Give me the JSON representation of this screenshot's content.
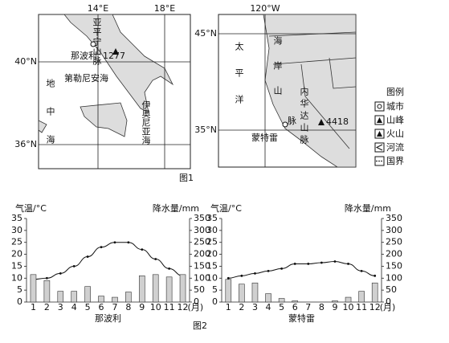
{
  "figure1": {
    "caption": "图1",
    "map_a": {
      "lon_labels": [
        "14°E",
        "18°E"
      ],
      "lat_labels": [
        "40°N",
        "36°N"
      ],
      "labels": [
        "亚平宁山脉",
        "那波利",
        "1277",
        "第勒尼安海",
        "地中海",
        "伊奥尼亚海"
      ]
    },
    "map_b": {
      "lon_labels": [
        "120°W"
      ],
      "lat_labels": [
        "45°N",
        "35°N"
      ],
      "labels": [
        "太平洋",
        "海岸山",
        "脉",
        "内华达山脉",
        "4418",
        "蒙特雷"
      ]
    },
    "legend": {
      "title": "图例",
      "items": [
        "城市",
        "山峰",
        "火山",
        "河流",
        "国界"
      ]
    }
  },
  "chart_data": [
    {
      "type": "climate",
      "title": "那波利",
      "ylabel": "气温/°C",
      "y2label": "降水量/mm",
      "x_unit": "(月)",
      "categories": [
        "1",
        "2",
        "3",
        "4",
        "5",
        "6",
        "7",
        "8",
        "9",
        "10",
        "11",
        "12"
      ],
      "series": [
        {
          "kind": "line",
          "color": "#111",
          "values": [
            9.5,
            10,
            12,
            15,
            19,
            23,
            25,
            25,
            22,
            18,
            14,
            11
          ]
        },
        {
          "kind": "bar",
          "axis": "y2",
          "color": "#d0d0d0",
          "values": [
            115,
            90,
            45,
            45,
            65,
            25,
            20,
            42,
            110,
            115,
            105,
            115
          ]
        }
      ],
      "ylim": [
        0,
        35
      ],
      "yticks": [
        0,
        5,
        10,
        15,
        20,
        25,
        30,
        35
      ],
      "y2lim": [
        0,
        350
      ],
      "y2ticks": [
        0,
        50,
        100,
        150,
        200,
        250,
        300,
        350
      ]
    },
    {
      "type": "climate",
      "title": "蒙特雷",
      "ylabel": "气温/°C",
      "y2label": "降水量/mm",
      "x_unit": "(月)",
      "categories": [
        "1",
        "2",
        "3",
        "4",
        "5",
        "6",
        "7",
        "8",
        "9",
        "10",
        "11",
        "12"
      ],
      "series": [
        {
          "kind": "line",
          "color": "#111",
          "values": [
            10,
            11,
            12,
            13,
            14,
            16,
            16,
            16.5,
            17,
            16,
            13,
            11
          ]
        },
        {
          "kind": "bar",
          "axis": "y2",
          "color": "#d0d0d0",
          "values": [
            95,
            75,
            80,
            35,
            15,
            5,
            0,
            0,
            5,
            20,
            45,
            80
          ]
        }
      ],
      "ylim": [
        0,
        35
      ],
      "yticks": [
        0,
        5,
        10,
        15,
        20,
        25,
        30,
        35
      ],
      "y2lim": [
        0,
        350
      ],
      "y2ticks": [
        0,
        50,
        100,
        150,
        200,
        250,
        300,
        350
      ]
    }
  ],
  "figure2_caption": "图2"
}
